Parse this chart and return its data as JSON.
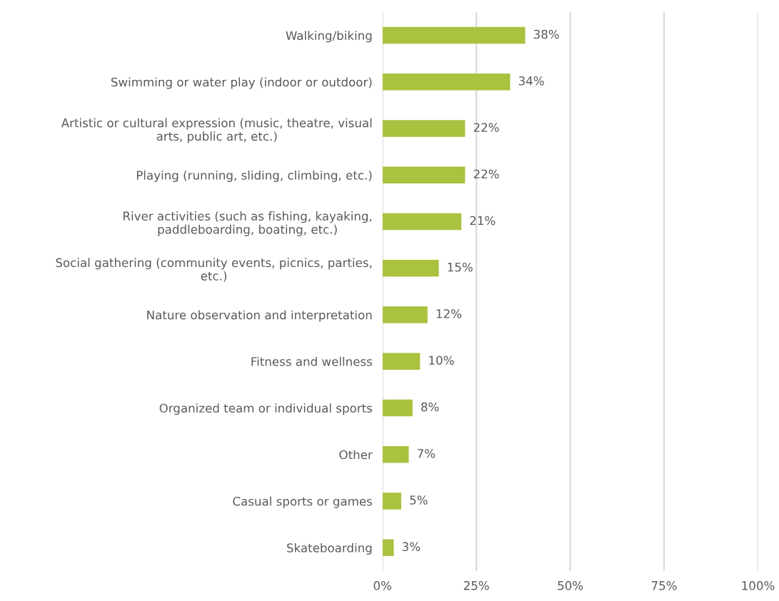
{
  "chart_data": {
    "type": "bar",
    "orientation": "horizontal",
    "categories": [
      "Walking/biking",
      "Swimming or water play (indoor or outdoor)",
      "Artistic or cultural expression (music, theatre, visual\narts, public art, etc.)",
      "Playing (running, sliding, climbing, etc.)",
      "River activities (such as fishing, kayaking,\npaddleboarding, boating, etc.)",
      "Social gathering (community events, picnics, parties,\netc.)",
      "Nature observation and interpretation",
      "Fitness and wellness",
      "Organized team or individual sports",
      "Other",
      "Casual sports or games",
      "Skateboarding"
    ],
    "values": [
      38,
      34,
      22,
      22,
      21,
      15,
      12,
      10,
      8,
      7,
      5,
      3
    ],
    "value_labels": [
      "38%",
      "34%",
      "22%",
      "22%",
      "21%",
      "15%",
      "12%",
      "10%",
      "8%",
      "7%",
      "5%",
      "3%"
    ],
    "color": "#a9c23f",
    "xlim": [
      0,
      100
    ],
    "xticks": [
      {
        "value": 0,
        "label": "0%"
      },
      {
        "value": 25,
        "label": "25%"
      },
      {
        "value": 50,
        "label": "50%"
      },
      {
        "value": 75,
        "label": "75%"
      },
      {
        "value": 100,
        "label": "100%"
      }
    ],
    "grid": "x",
    "legend": false
  }
}
